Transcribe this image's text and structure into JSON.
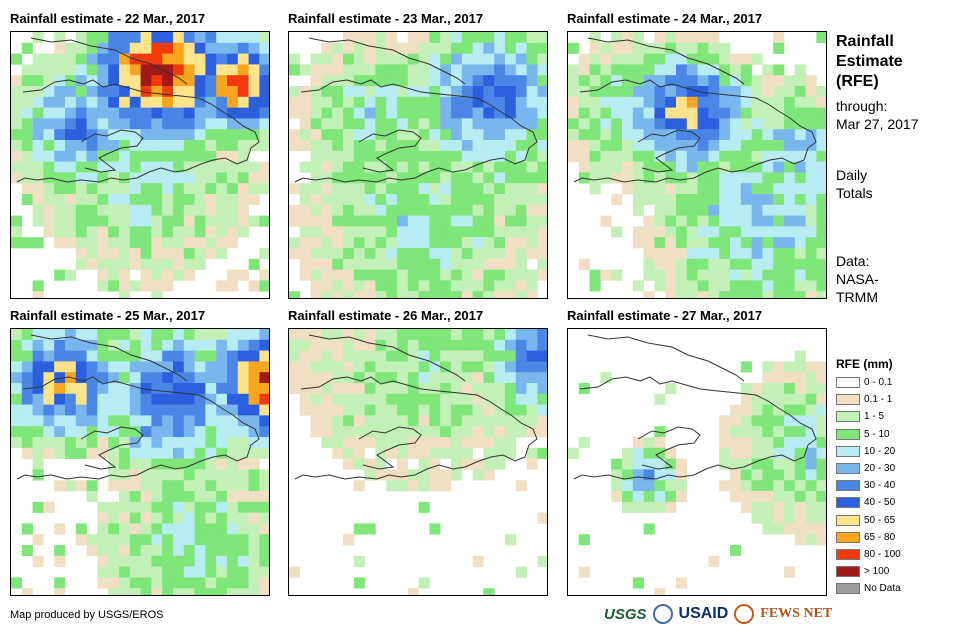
{
  "panels": [
    {
      "title": "Rainfall estimate - 22 Mar., 2017",
      "intensity": 1.0
    },
    {
      "title": "Rainfall estimate - 23 Mar., 2017",
      "intensity": 0.45
    },
    {
      "title": "Rainfall estimate - 24 Mar., 2017",
      "intensity": 0.75
    },
    {
      "title": "Rainfall estimate - 25 Mar., 2017",
      "intensity": 0.85
    },
    {
      "title": "Rainfall estimate - 26 Mar., 2017",
      "intensity": 0.15
    },
    {
      "title": "Rainfall estimate - 27 Mar., 2017",
      "intensity": 0.08
    }
  ],
  "side": {
    "title_line1": "Rainfall",
    "title_line2": "Estimate",
    "title_line3": "(RFE)",
    "through": "through:",
    "date": "Mar 27, 2017",
    "daily1": "Daily",
    "daily2": "Totals",
    "data1": "Data:",
    "data2": "NASA-",
    "data3": "TRMM"
  },
  "legend": {
    "title": "RFE (mm)",
    "items": [
      {
        "label": "0 - 0.1",
        "color": "#ffffff"
      },
      {
        "label": "0.1 - 1",
        "color": "#f1dfc4"
      },
      {
        "label": "1 - 5",
        "color": "#c3f0b7"
      },
      {
        "label": "5 - 10",
        "color": "#7fe67a"
      },
      {
        "label": "10 - 20",
        "color": "#b7ecf3"
      },
      {
        "label": "20 - 30",
        "color": "#7ab6ee"
      },
      {
        "label": "30 - 40",
        "color": "#4a86e6"
      },
      {
        "label": "40 - 50",
        "color": "#2b5fde"
      },
      {
        "label": "50 - 65",
        "color": "#fde48a"
      },
      {
        "label": "65 - 80",
        "color": "#f9a51e"
      },
      {
        "label": "80 - 100",
        "color": "#f43a0d"
      },
      {
        "label": "> 100",
        "color": "#a01818"
      },
      {
        "label": "No Data",
        "color": "#9b9b9b"
      }
    ]
  },
  "footer": "Map produced by USGS/EROS",
  "logos": {
    "usgs": "USGS",
    "usaid": "USAID",
    "fews": "FEWS NET"
  }
}
